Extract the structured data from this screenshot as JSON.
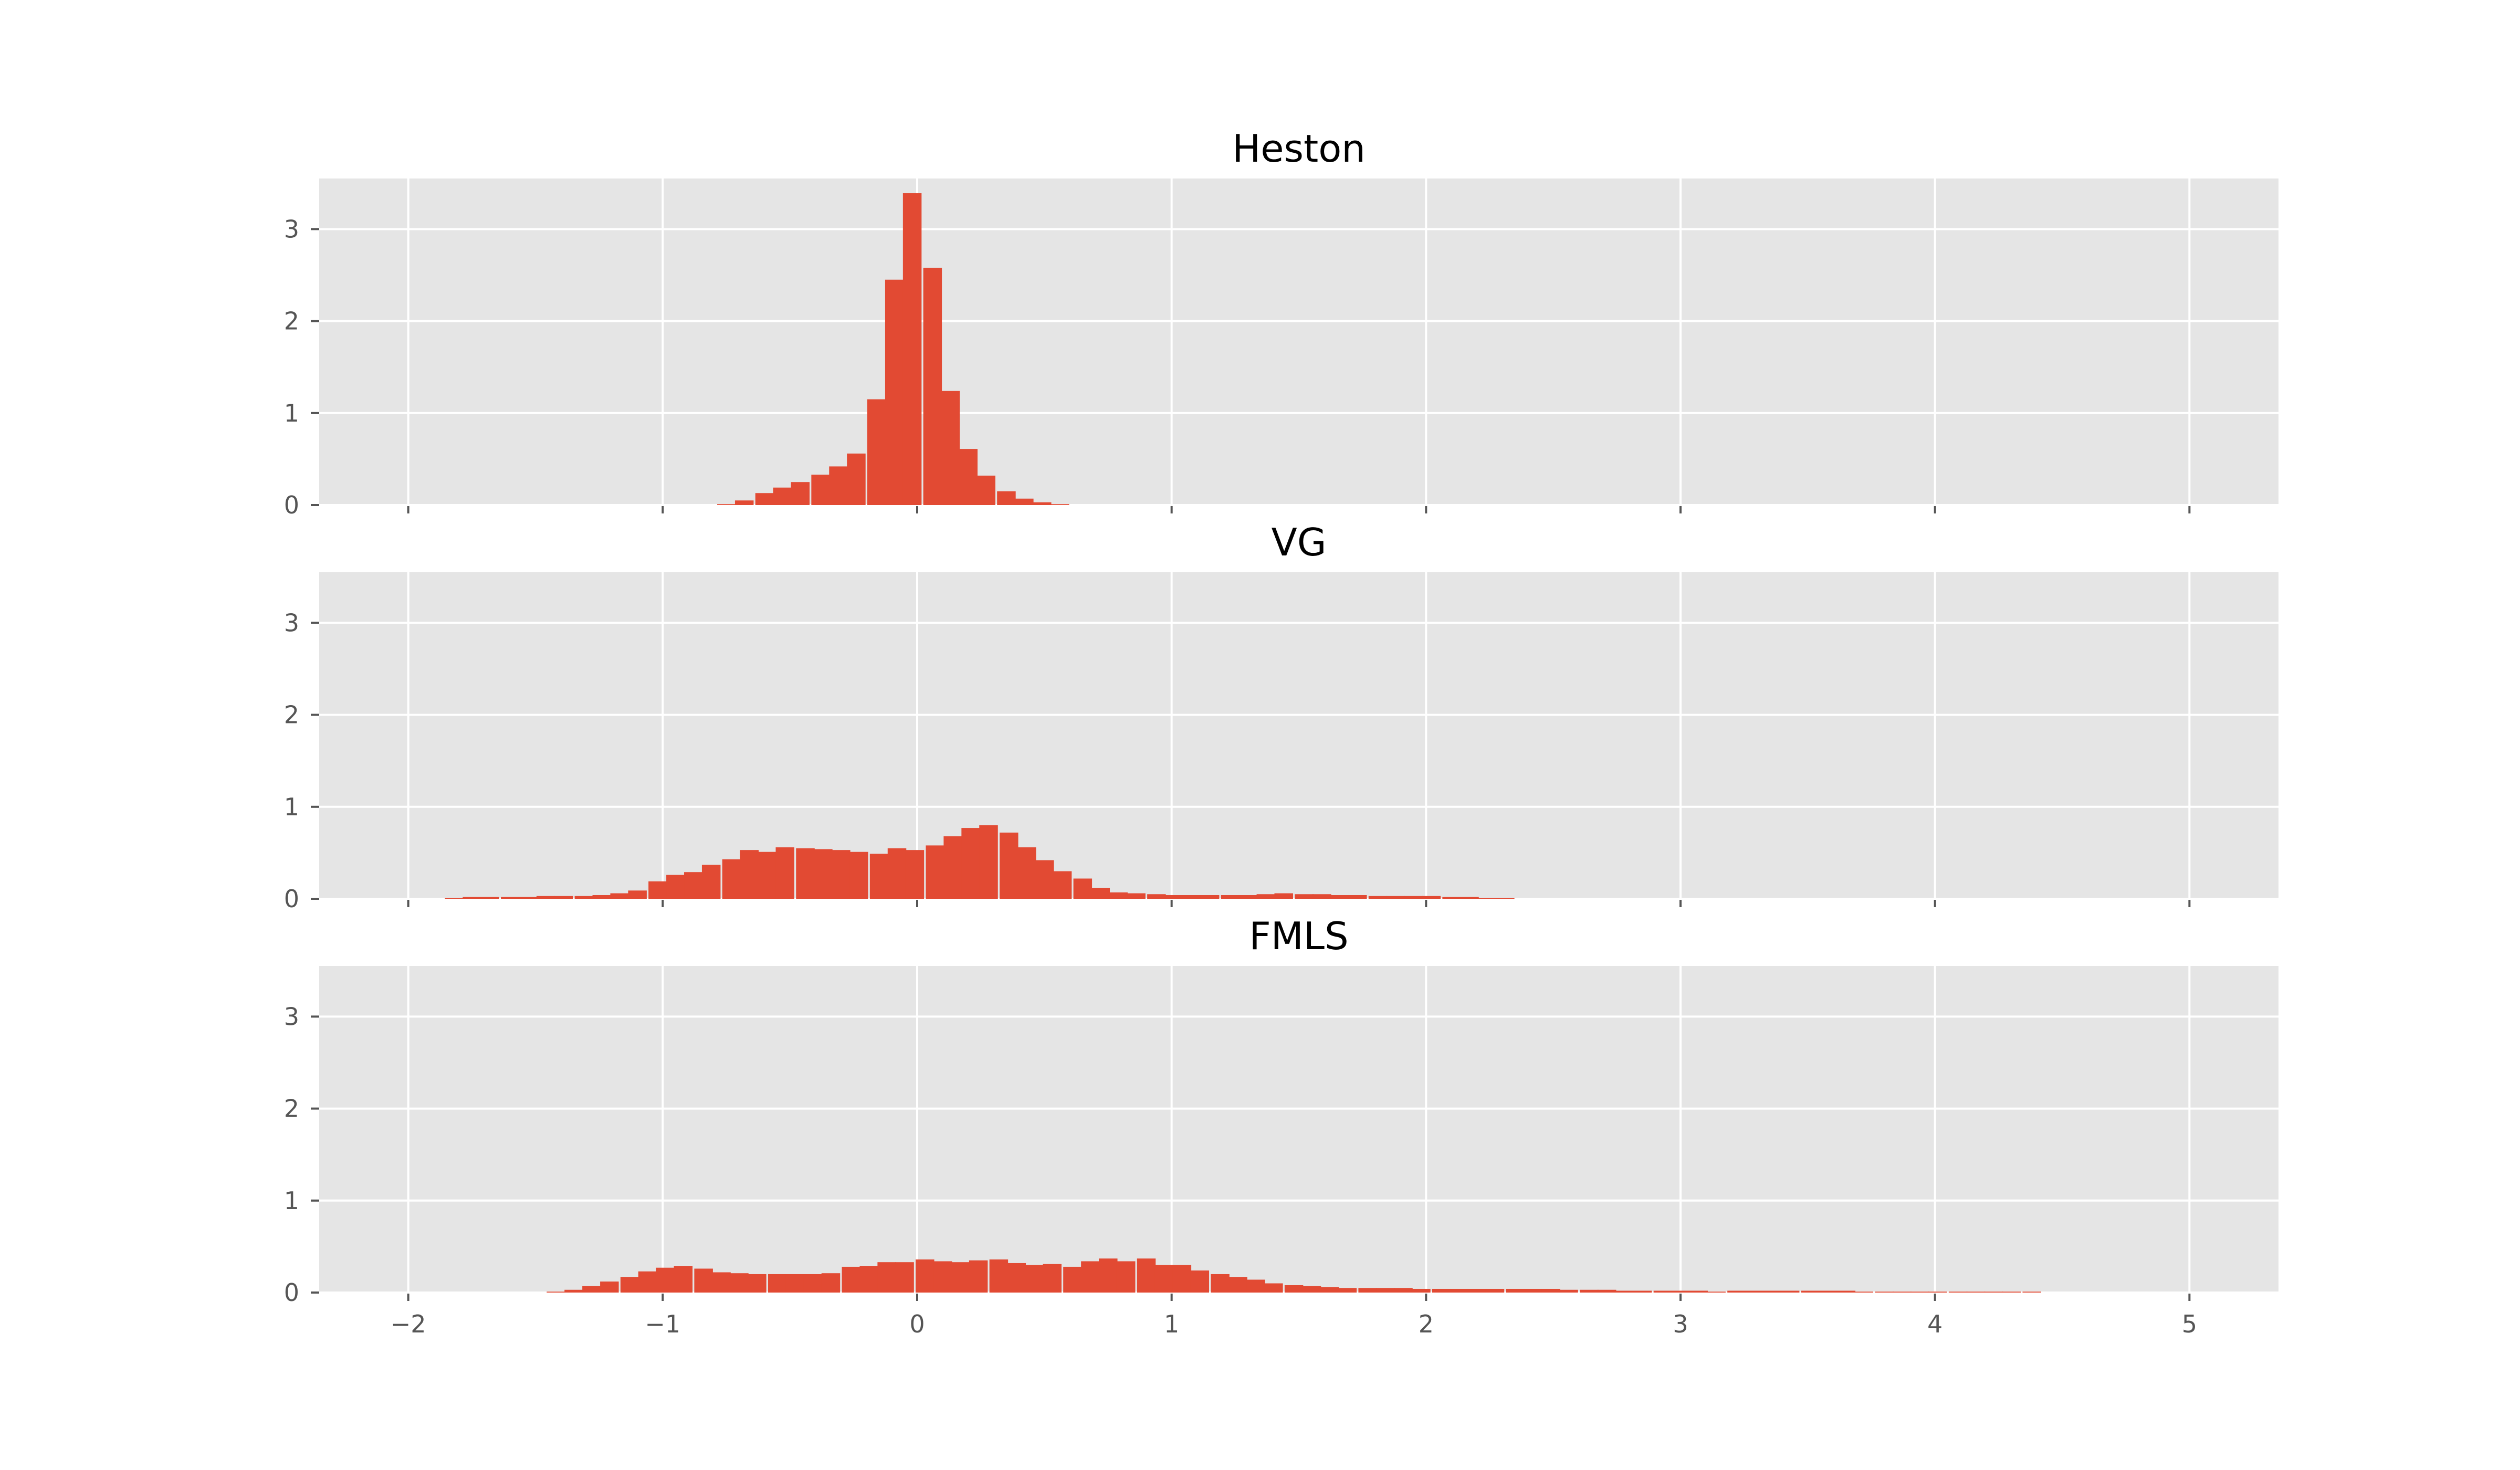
{
  "chart_data": [
    {
      "type": "bar",
      "title": "Heston",
      "xlim": [
        -2.35,
        5.35
      ],
      "ylim": [
        0,
        3.55
      ],
      "xticks": [
        "−2",
        "−1",
        "0",
        "1",
        "2",
        "3",
        "4",
        "5"
      ],
      "xtick_values": [
        -2,
        -1,
        0,
        1,
        2,
        3,
        4,
        5
      ],
      "yticks": [
        "0",
        "1",
        "2",
        "3"
      ],
      "ytick_values": [
        0,
        1,
        2,
        3
      ],
      "show_x_tick_labels": false,
      "grid": true,
      "bin_width": 0.072,
      "x": [
        -0.75,
        -0.68,
        -0.6,
        -0.53,
        -0.46,
        -0.38,
        -0.31,
        -0.24,
        -0.16,
        -0.09,
        -0.02,
        0.06,
        0.13,
        0.2,
        0.27,
        0.35,
        0.42,
        0.49,
        0.56
      ],
      "values": [
        0.01,
        0.05,
        0.13,
        0.19,
        0.25,
        0.33,
        0.42,
        0.56,
        1.15,
        2.45,
        3.39,
        2.58,
        1.24,
        0.61,
        0.32,
        0.15,
        0.07,
        0.03,
        0.01
      ]
    },
    {
      "type": "bar",
      "title": "VG",
      "xlim": [
        -2.35,
        5.35
      ],
      "ylim": [
        0,
        3.55
      ],
      "xticks": [
        "−2",
        "−1",
        "0",
        "1",
        "2",
        "3",
        "4",
        "5"
      ],
      "xtick_values": [
        -2,
        -1,
        0,
        1,
        2,
        3,
        4,
        5
      ],
      "yticks": [
        "0",
        "1",
        "2",
        "3"
      ],
      "ytick_values": [
        0,
        1,
        2,
        3
      ],
      "show_x_tick_labels": false,
      "grid": true,
      "bin_width": 0.072,
      "x": [
        -1.82,
        -1.75,
        -1.68,
        -1.6,
        -1.53,
        -1.46,
        -1.39,
        -1.31,
        -1.24,
        -1.17,
        -1.1,
        -1.02,
        -0.95,
        -0.88,
        -0.81,
        -0.73,
        -0.66,
        -0.59,
        -0.52,
        -0.44,
        -0.37,
        -0.3,
        -0.23,
        -0.15,
        -0.08,
        -0.01,
        0.07,
        0.14,
        0.21,
        0.28,
        0.36,
        0.43,
        0.5,
        0.57,
        0.65,
        0.72,
        0.79,
        0.86,
        0.94,
        1.01,
        1.08,
        1.15,
        1.23,
        1.3,
        1.37,
        1.44,
        1.52,
        1.59,
        1.66,
        1.73,
        1.81,
        1.88,
        1.95,
        2.02,
        2.1,
        2.17,
        2.24,
        2.31
      ],
      "values": [
        0.01,
        0.02,
        0.02,
        0.02,
        0.02,
        0.03,
        0.03,
        0.03,
        0.04,
        0.06,
        0.09,
        0.19,
        0.26,
        0.29,
        0.37,
        0.43,
        0.53,
        0.51,
        0.56,
        0.55,
        0.54,
        0.53,
        0.51,
        0.49,
        0.55,
        0.53,
        0.58,
        0.68,
        0.77,
        0.8,
        0.72,
        0.56,
        0.42,
        0.3,
        0.22,
        0.12,
        0.07,
        0.06,
        0.05,
        0.04,
        0.04,
        0.04,
        0.04,
        0.04,
        0.05,
        0.06,
        0.05,
        0.05,
        0.04,
        0.04,
        0.03,
        0.03,
        0.03,
        0.03,
        0.02,
        0.02,
        0.01,
        0.01
      ]
    },
    {
      "type": "bar",
      "title": "FMLS",
      "xlim": [
        -2.35,
        5.35
      ],
      "ylim": [
        0,
        3.55
      ],
      "xticks": [
        "−2",
        "−1",
        "0",
        "1",
        "2",
        "3",
        "4",
        "5"
      ],
      "xtick_values": [
        -2,
        -1,
        0,
        1,
        2,
        3,
        4,
        5
      ],
      "yticks": [
        "0",
        "1",
        "2",
        "3"
      ],
      "ytick_values": [
        0,
        1,
        2,
        3
      ],
      "show_x_tick_labels": true,
      "grid": true,
      "bin_width": 0.072,
      "x": [
        -1.42,
        -1.35,
        -1.28,
        -1.21,
        -1.13,
        -1.06,
        -0.99,
        -0.92,
        -0.84,
        -0.77,
        -0.7,
        -0.63,
        -0.55,
        -0.48,
        -0.41,
        -0.34,
        -0.26,
        -0.19,
        -0.12,
        -0.05,
        0.03,
        0.1,
        0.17,
        0.24,
        0.32,
        0.39,
        0.46,
        0.53,
        0.61,
        0.68,
        0.75,
        0.82,
        0.9,
        0.97,
        1.04,
        1.11,
        1.19,
        1.26,
        1.33,
        1.4,
        1.48,
        1.55,
        1.62,
        1.69,
        1.77,
        1.84,
        1.91,
        1.98,
        2.06,
        2.13,
        2.2,
        2.27,
        2.35,
        2.42,
        2.49,
        2.56,
        2.64,
        2.71,
        2.78,
        2.85,
        2.93,
        3.0,
        3.07,
        3.14,
        3.22,
        3.29,
        3.36,
        3.43,
        3.51,
        3.58,
        3.65,
        3.72,
        3.8,
        3.87,
        3.94,
        4.01,
        4.09,
        4.16,
        4.23,
        4.3,
        4.38
      ],
      "values": [
        0.01,
        0.03,
        0.07,
        0.12,
        0.17,
        0.23,
        0.27,
        0.29,
        0.26,
        0.22,
        0.21,
        0.2,
        0.2,
        0.2,
        0.2,
        0.21,
        0.28,
        0.29,
        0.33,
        0.33,
        0.36,
        0.34,
        0.33,
        0.35,
        0.36,
        0.32,
        0.3,
        0.31,
        0.28,
        0.34,
        0.37,
        0.34,
        0.37,
        0.3,
        0.3,
        0.24,
        0.2,
        0.17,
        0.14,
        0.1,
        0.08,
        0.07,
        0.06,
        0.05,
        0.05,
        0.05,
        0.05,
        0.04,
        0.04,
        0.04,
        0.04,
        0.04,
        0.04,
        0.04,
        0.04,
        0.03,
        0.03,
        0.03,
        0.02,
        0.02,
        0.02,
        0.02,
        0.02,
        0.01,
        0.02,
        0.02,
        0.02,
        0.02,
        0.02,
        0.02,
        0.02,
        0.01,
        0.01,
        0.01,
        0.01,
        0.01,
        0.01,
        0.01,
        0.01,
        0.01,
        0.01
      ]
    }
  ]
}
